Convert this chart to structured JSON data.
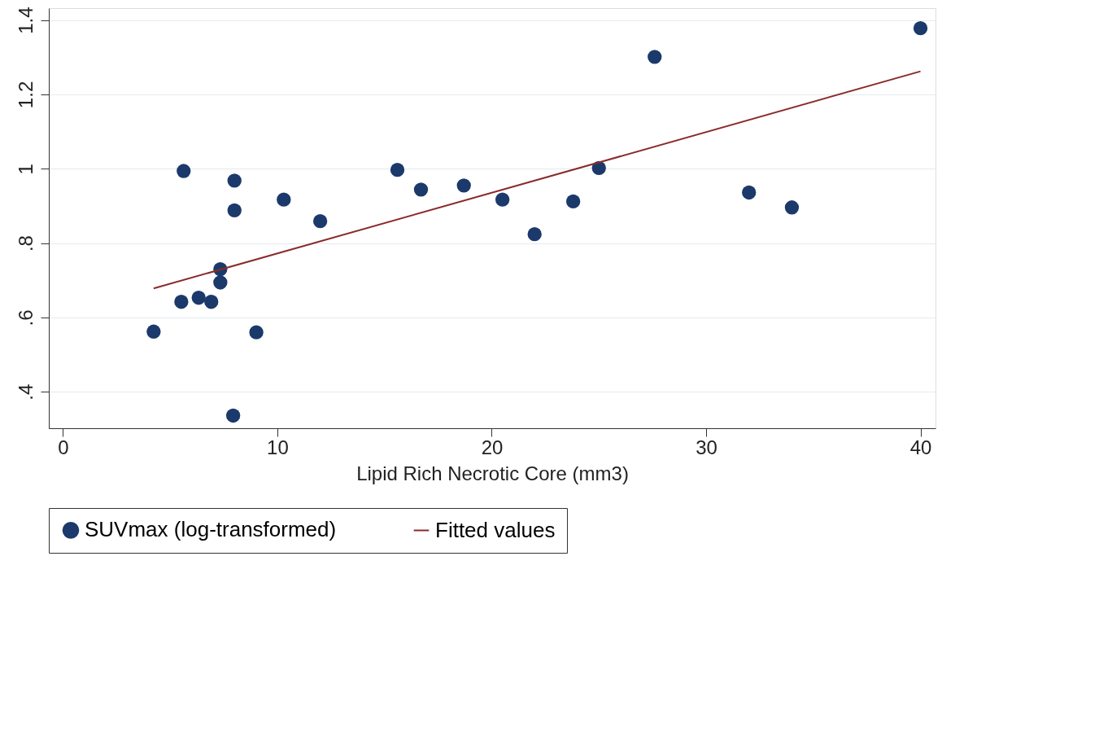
{
  "chart_data": {
    "type": "scatter",
    "xlabel": "Lipid Rich Necrotic Core (mm3)",
    "xlim": [
      -0.66,
      40.7
    ],
    "xticks": [
      0,
      10,
      20,
      30,
      40
    ],
    "ylim": [
      0.302,
      1.432
    ],
    "yticks": [
      {
        "value": 0.4,
        "label": ".4"
      },
      {
        "value": 0.6,
        "label": ".6"
      },
      {
        "value": 0.8,
        "label": ".8"
      },
      {
        "value": 1,
        "label": "1"
      },
      {
        "value": 1.2,
        "label": "1.2"
      },
      {
        "value": 1.4,
        "label": "1.4"
      }
    ],
    "grid": "y",
    "legend": "bottom",
    "series": [
      {
        "name": "SUVmax (log-transformed)",
        "marker": "circle",
        "color": "#1b3a6b",
        "x": [
          4.23,
          5.52,
          5.63,
          6.33,
          6.92,
          7.34,
          7.34,
          8.0,
          8.0,
          7.94,
          9.02,
          10.3,
          12.0,
          15.6,
          16.7,
          18.7,
          20.5,
          22.0,
          23.8,
          25.0,
          27.6,
          32.0,
          34.0,
          40.0
        ],
        "values": [
          0.562,
          0.642,
          0.994,
          0.653,
          0.642,
          0.73,
          0.694,
          0.968,
          0.888,
          0.336,
          0.56,
          0.917,
          0.859,
          0.997,
          0.944,
          0.955,
          0.917,
          0.824,
          0.912,
          1.002,
          1.301,
          0.936,
          0.896,
          1.378
        ]
      },
      {
        "name": "Fitted values",
        "type": "line",
        "marker": "none",
        "color": "#8b2a2a",
        "line_style": "solid",
        "x": [
          4.23,
          40.0
        ],
        "values": [
          0.678,
          1.262
        ]
      }
    ]
  }
}
